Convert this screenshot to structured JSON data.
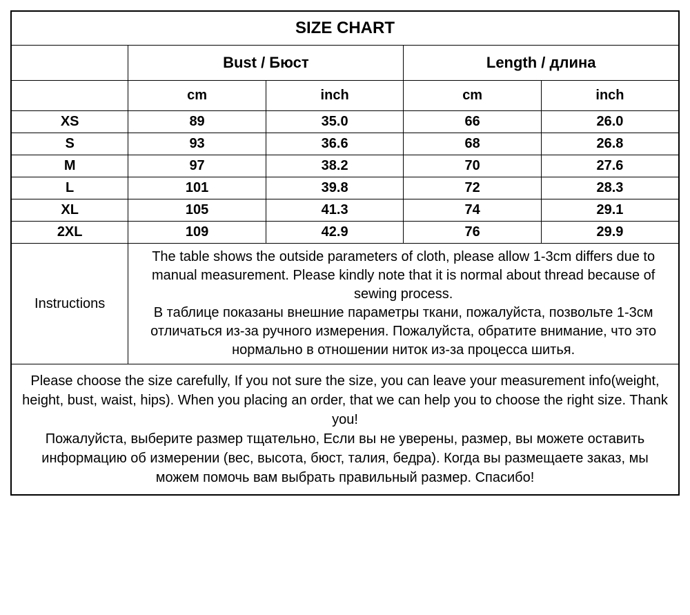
{
  "title": "SIZE CHART",
  "groups": [
    {
      "label": "Bust / Бюст"
    },
    {
      "label": "Length / длина"
    }
  ],
  "units": {
    "cm": "cm",
    "inch": "inch"
  },
  "rows": [
    {
      "size": "XS",
      "bust_cm": "89",
      "bust_in": "35.0",
      "len_cm": "66",
      "len_in": "26.0"
    },
    {
      "size": "S",
      "bust_cm": "93",
      "bust_in": "36.6",
      "len_cm": "68",
      "len_in": "26.8"
    },
    {
      "size": "M",
      "bust_cm": "97",
      "bust_in": "38.2",
      "len_cm": "70",
      "len_in": "27.6"
    },
    {
      "size": "L",
      "bust_cm": "101",
      "bust_in": "39.8",
      "len_cm": "72",
      "len_in": "28.3"
    },
    {
      "size": "XL",
      "bust_cm": "105",
      "bust_in": "41.3",
      "len_cm": "74",
      "len_in": "29.1"
    },
    {
      "size": "2XL",
      "bust_cm": "109",
      "bust_in": "42.9",
      "len_cm": "76",
      "len_in": "29.9"
    }
  ],
  "instructions_label": "Instructions",
  "instructions_en": "The table shows the outside parameters of cloth, please allow 1-3cm differs due to manual measurement. Please kindly note that it is normal about thread because of sewing process.",
  "instructions_ru": "В таблице показаны внешние параметры ткани, пожалуйста, позвольте 1-3см отличаться из-за ручного измерения. Пожалуйста, обратите внимание, что это нормально в отношении ниток из-за процесса шитья.",
  "footer_en": "Please choose the size carefully, If you not sure the size, you can leave your measurement info(weight, height, bust, waist, hips). When you placing an order, that we can help you to choose the right size. Thank you!",
  "footer_ru": "Пожалуйста, выберите размер тщательно, Если вы не уверены, размер, вы можете оставить информацию об измерении (вес, высота, бюст, талия, бедра). Когда вы размещаете заказ, мы можем помочь вам выбрать правильный размер. Спасибо!",
  "style": {
    "border_color": "#000000",
    "background_color": "#ffffff",
    "text_color": "#000000",
    "title_fontsize": 24,
    "header_fontsize": 22,
    "cell_fontsize": 20,
    "body_fontsize": 20,
    "font_family": "Arial"
  }
}
